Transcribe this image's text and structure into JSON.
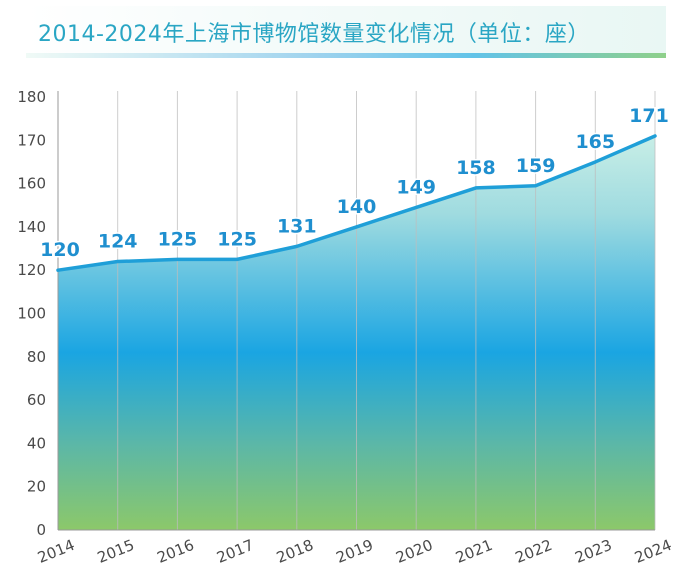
{
  "header": {
    "title": "2014-2024年上海市博物馆数量变化情况（单位：座）"
  },
  "colors": {
    "title": "#2aa6c4",
    "line": "#1f9fd8",
    "data_label": "#1f8fcf",
    "area_top": "#b6e6dd",
    "area_mid": "#1aa5e2",
    "area_bottom": "#8cc86a",
    "grid": "#bdbdbd"
  },
  "chart_data": {
    "type": "area",
    "title": "2014-2024年上海市博物馆数量变化情况（单位：座）",
    "xlabel": "",
    "ylabel": "",
    "x": [
      "2014",
      "2015",
      "2016",
      "2017",
      "2018",
      "2019",
      "2020",
      "2021",
      "2022",
      "2023",
      "2024"
    ],
    "values": [
      120,
      124,
      125,
      125,
      131,
      140,
      149,
      158,
      159,
      165,
      171
    ],
    "data_labels": [
      "120",
      "124",
      "125",
      "125",
      "131",
      "140",
      "149",
      "158",
      "159",
      "165",
      "171"
    ],
    "y_ticks": [
      "0",
      "20",
      "40",
      "60",
      "80",
      "100",
      "120",
      "140",
      "160",
      "170",
      "180"
    ],
    "y_tick_values": [
      0,
      20,
      40,
      60,
      80,
      100,
      120,
      140,
      160,
      170,
      180
    ],
    "ylim": [
      0,
      180
    ],
    "grid": "vertical",
    "legend": "none"
  }
}
